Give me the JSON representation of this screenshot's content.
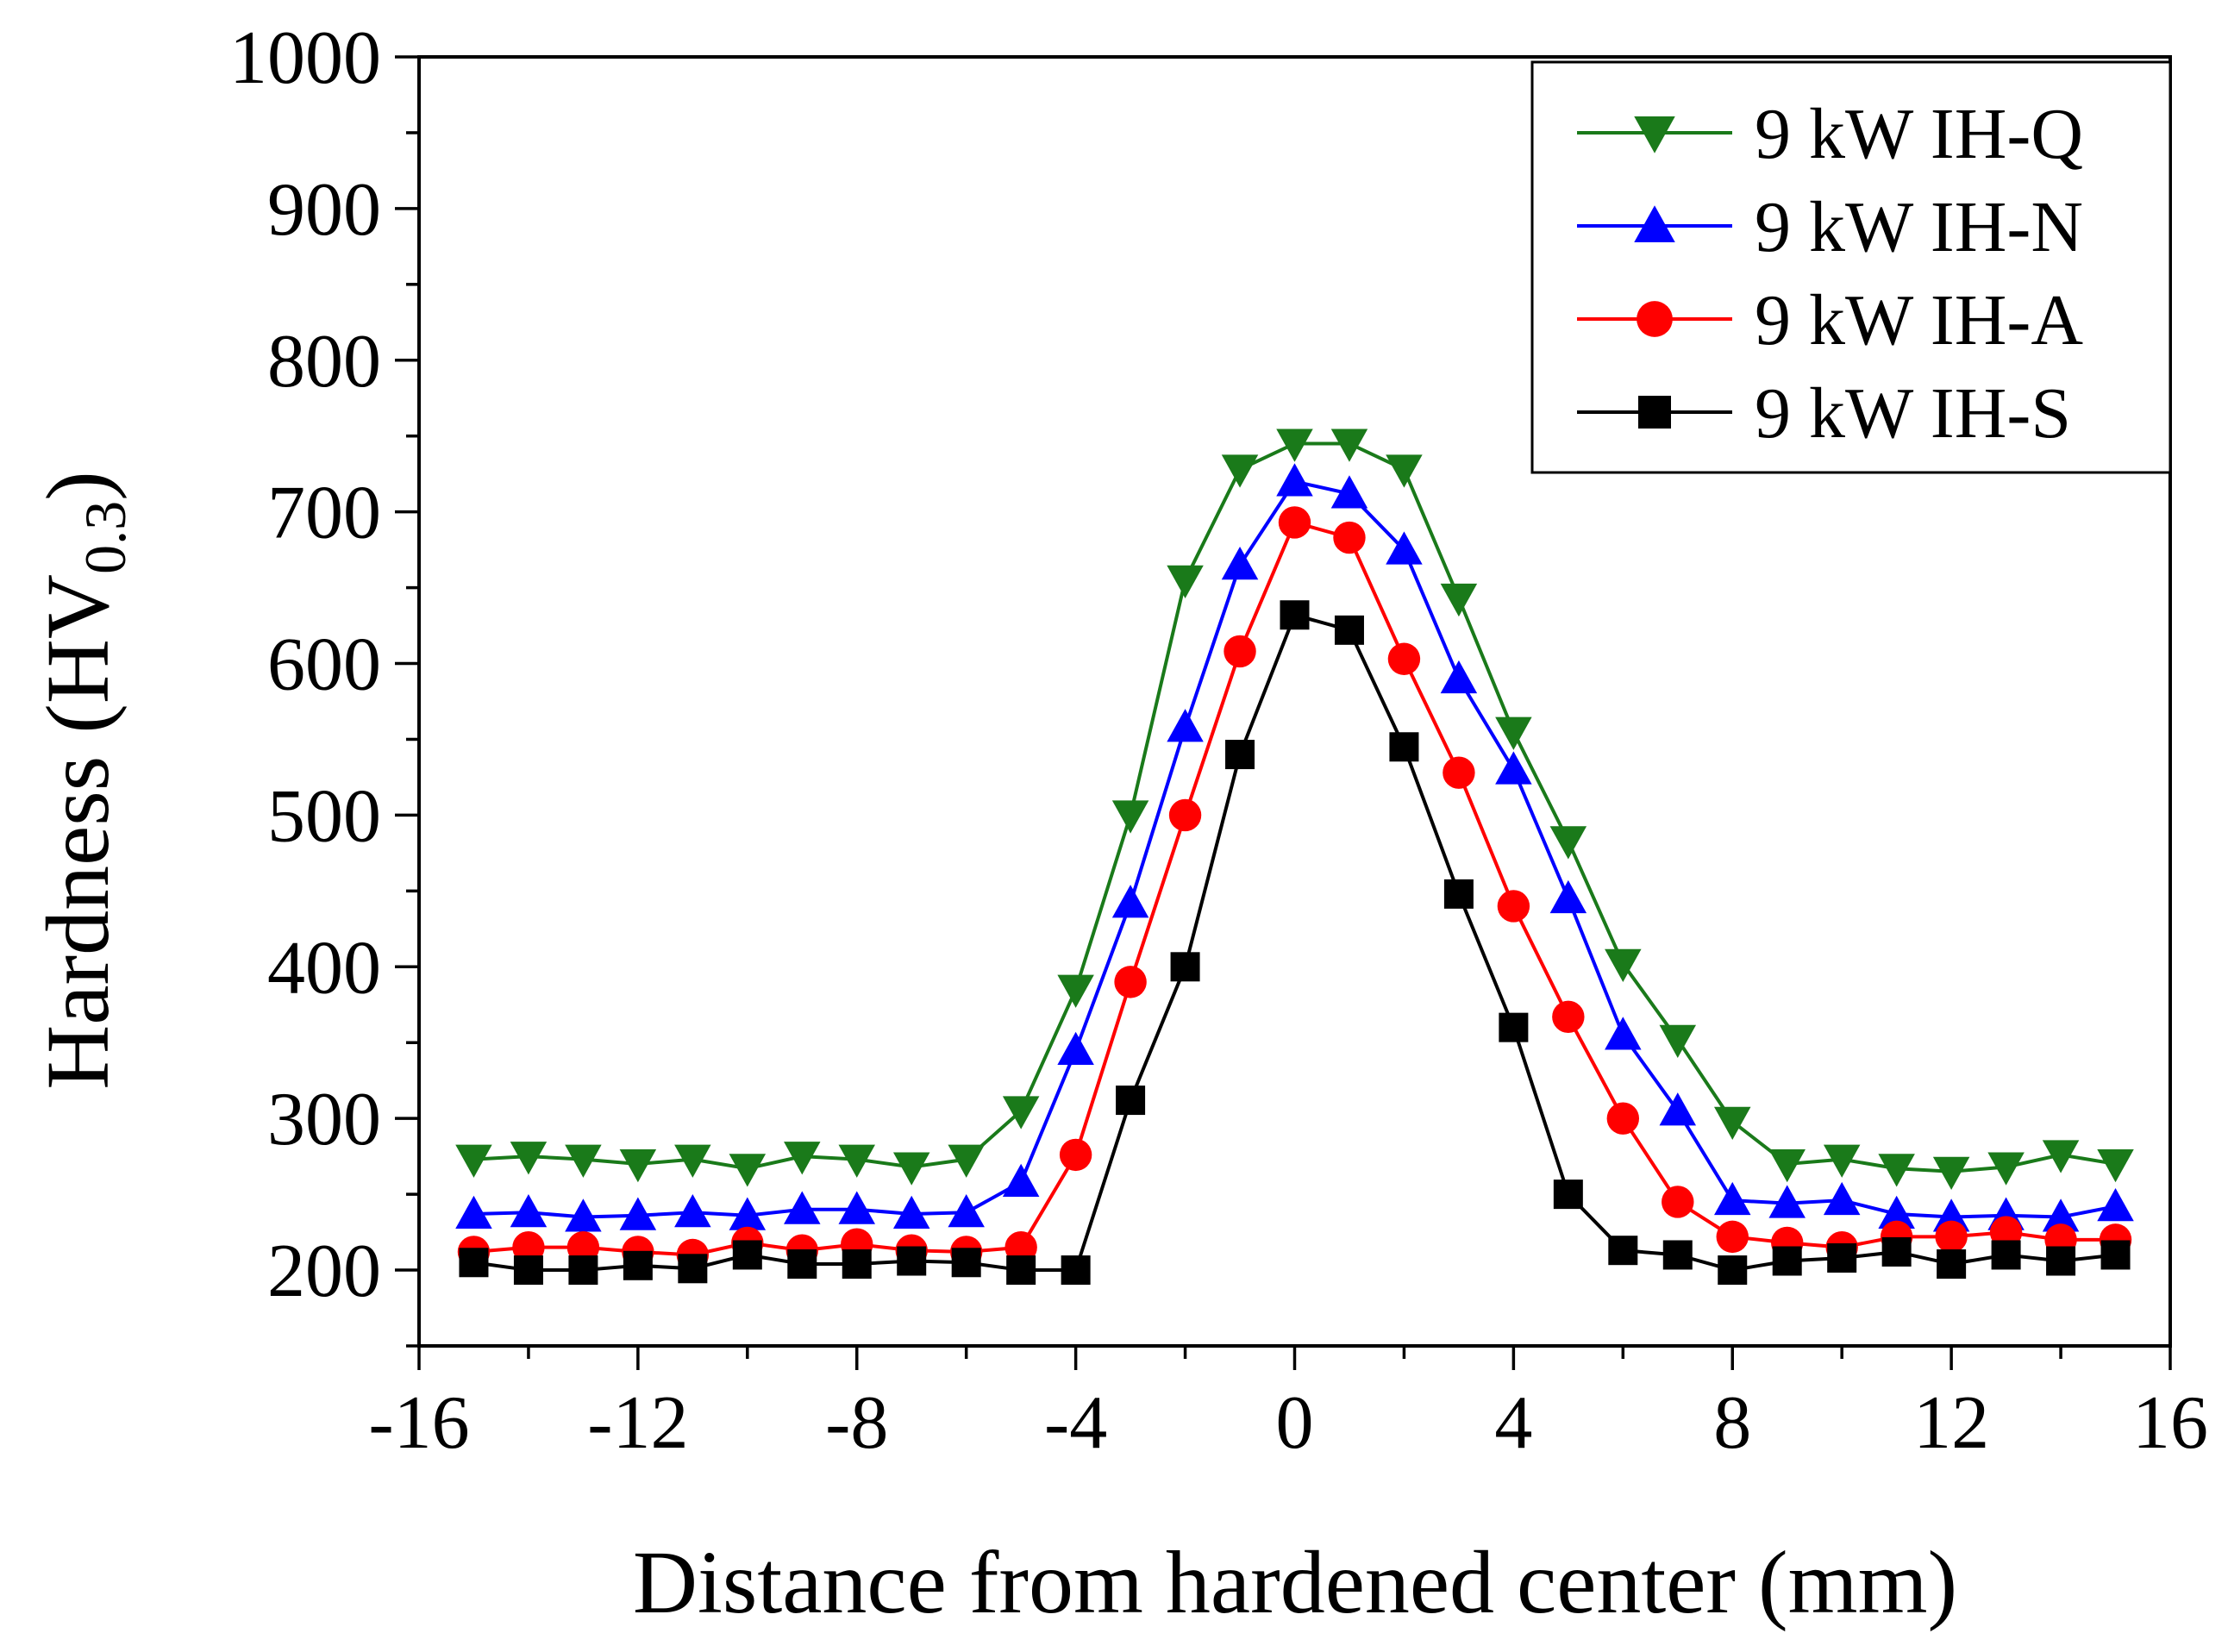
{
  "chart_data": {
    "type": "line",
    "xlabel": "Distance from hardened center (mm)",
    "ylabel": "Hardness (HV",
    "ylabel_subscript": "0.3",
    "ylabel_close": ")",
    "xlim": [
      -16,
      16
    ],
    "ylim": [
      150,
      1000
    ],
    "xticks": [
      -16,
      -12,
      -8,
      -4,
      0,
      4,
      8,
      12,
      16
    ],
    "xtick_labels": [
      "-16",
      "-12",
      "-8",
      "-4",
      "0",
      "4",
      "8",
      "12",
      "16"
    ],
    "yticks": [
      200,
      300,
      400,
      500,
      600,
      700,
      800,
      900,
      1000
    ],
    "ytick_labels": [
      "200",
      "300",
      "400",
      "500",
      "600",
      "700",
      "800",
      "900",
      "1000"
    ],
    "legend_position": "top-right",
    "x": [
      -15,
      -14,
      -13,
      -12,
      -11,
      -10,
      -9,
      -8,
      -7,
      -6,
      -5,
      -4,
      -3,
      -2,
      -1,
      0,
      1,
      2,
      3,
      4,
      5,
      6,
      7,
      8,
      9,
      10,
      11,
      12,
      13,
      14,
      15
    ],
    "series": [
      {
        "name": "9 kW IH-Q",
        "color": "#1a7a1a",
        "marker": "triangle-down",
        "values": [
          273,
          275,
          273,
          270,
          273,
          267,
          275,
          273,
          268,
          273,
          305,
          385,
          500,
          655,
          728,
          745,
          745,
          728,
          643,
          555,
          483,
          402,
          352,
          298,
          270,
          273,
          267,
          265,
          268,
          276,
          270
        ]
      },
      {
        "name": "9 kW IH-N",
        "color": "#0000ff",
        "marker": "triangle-up",
        "values": [
          237,
          238,
          235,
          236,
          238,
          236,
          240,
          240,
          237,
          238,
          258,
          345,
          442,
          558,
          665,
          720,
          712,
          675,
          590,
          530,
          445,
          355,
          305,
          246,
          244,
          246,
          237,
          235,
          236,
          235,
          242
        ]
      },
      {
        "name": "9 kW IH-A",
        "color": "#ff0000",
        "marker": "circle",
        "values": [
          212,
          215,
          215,
          212,
          210,
          218,
          213,
          217,
          213,
          212,
          215,
          276,
          390,
          500,
          608,
          693,
          683,
          603,
          528,
          440,
          367,
          300,
          245,
          222,
          218,
          215,
          222,
          222,
          225,
          220,
          220
        ]
      },
      {
        "name": "9 kW IH-S",
        "color": "#000000",
        "marker": "square",
        "values": [
          205,
          200,
          200,
          203,
          201,
          210,
          204,
          204,
          206,
          205,
          200,
          200,
          312,
          400,
          540,
          632,
          622,
          545,
          448,
          360,
          250,
          213,
          210,
          200,
          206,
          208,
          212,
          204,
          210,
          206,
          210
        ]
      }
    ]
  }
}
